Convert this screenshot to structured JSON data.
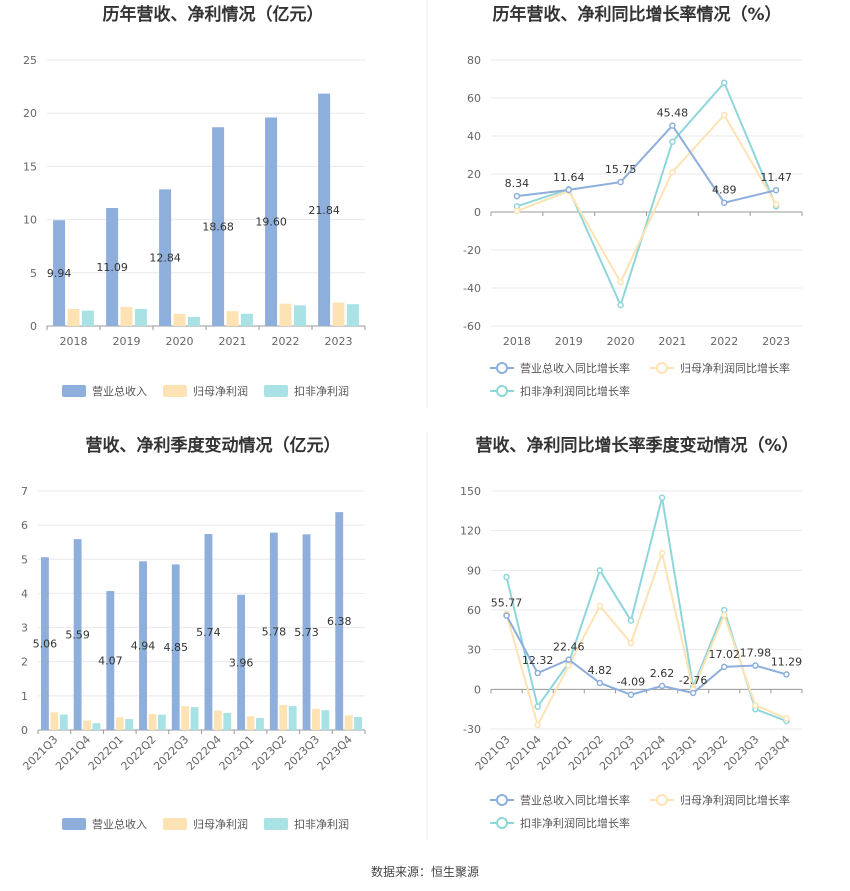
{
  "colors": {
    "revenue": "#8eaedc",
    "net_profit": "#fde3b3",
    "deducted_profit": "#a9e2e4",
    "revenue_line": "#8eaedc",
    "net_profit_line": "#fde3b3",
    "deducted_profit_line": "#8fd6da",
    "grid": "#e8e8ee",
    "axis": "#999999"
  },
  "footer": {
    "source": "数据来源：恒生聚源"
  },
  "chart_data": [
    {
      "type": "bar",
      "title": "历年营收、净利情况（亿元）",
      "categories": [
        "2018",
        "2019",
        "2020",
        "2021",
        "2022",
        "2023"
      ],
      "ylim": [
        0,
        25
      ],
      "yticks": [
        0,
        5,
        10,
        15,
        20,
        25
      ],
      "series": [
        {
          "name": "营业总收入",
          "values": [
            9.94,
            11.09,
            12.84,
            18.68,
            19.6,
            21.84
          ],
          "labels": [
            "9.94",
            "11.09",
            "12.84",
            "18.68",
            "19.60",
            "21.84"
          ]
        },
        {
          "name": "归母净利润",
          "values": [
            1.6,
            1.8,
            1.15,
            1.4,
            2.1,
            2.2
          ]
        },
        {
          "name": "扣非净利润",
          "values": [
            1.45,
            1.6,
            0.85,
            1.15,
            1.95,
            2.05
          ]
        }
      ],
      "legend": "bottom",
      "grid": true
    },
    {
      "type": "line",
      "title": "历年营收、净利同比增长率情况（%）",
      "categories": [
        "2018",
        "2019",
        "2020",
        "2021",
        "2022",
        "2023"
      ],
      "ylim": [
        -60,
        80
      ],
      "yticks": [
        -60,
        -40,
        -20,
        0,
        20,
        40,
        60,
        80
      ],
      "series": [
        {
          "name": "营业总收入同比增长率",
          "values": [
            8.34,
            11.64,
            15.75,
            45.48,
            4.89,
            11.47
          ],
          "labels": [
            "8.34",
            "11.64",
            "15.75",
            "45.48",
            "4.89",
            "11.47"
          ]
        },
        {
          "name": "归母净利润同比增长率",
          "values": [
            0.5,
            11,
            -37,
            21,
            51,
            4
          ]
        },
        {
          "name": "扣非净利润同比增长率",
          "values": [
            3,
            12,
            -49,
            37,
            68,
            3
          ]
        }
      ],
      "legend": "bottom",
      "grid": true
    },
    {
      "type": "bar",
      "title": "营收、净利季度变动情况（亿元）",
      "categories": [
        "2021Q3",
        "2021Q4",
        "2022Q1",
        "2022Q2",
        "2022Q3",
        "2022Q4",
        "2023Q1",
        "2023Q2",
        "2023Q3",
        "2023Q4"
      ],
      "ylim": [
        0,
        7
      ],
      "yticks": [
        0,
        1,
        2,
        3,
        4,
        5,
        6,
        7
      ],
      "series": [
        {
          "name": "营业总收入",
          "values": [
            5.06,
            5.59,
            4.07,
            4.94,
            4.85,
            5.74,
            3.96,
            5.78,
            5.73,
            6.38
          ],
          "labels": [
            "5.06",
            "5.59",
            "4.07",
            "4.94",
            "4.85",
            "5.74",
            "3.96",
            "5.78",
            "5.73",
            "6.38"
          ]
        },
        {
          "name": "归母净利润",
          "values": [
            0.52,
            0.28,
            0.37,
            0.47,
            0.7,
            0.57,
            0.4,
            0.73,
            0.62,
            0.43
          ]
        },
        {
          "name": "扣非净利润",
          "values": [
            0.45,
            0.2,
            0.32,
            0.45,
            0.67,
            0.5,
            0.35,
            0.7,
            0.58,
            0.38
          ]
        }
      ],
      "legend": "bottom",
      "grid": true
    },
    {
      "type": "line",
      "title": "营收、净利同比增长率季度变动情况（%）",
      "categories": [
        "2021Q3",
        "2021Q4",
        "2022Q1",
        "2022Q2",
        "2022Q3",
        "2022Q4",
        "2023Q1",
        "2023Q2",
        "2023Q3",
        "2023Q4"
      ],
      "ylim": [
        -30,
        150
      ],
      "yticks": [
        -30,
        0,
        30,
        60,
        90,
        120,
        150
      ],
      "series": [
        {
          "name": "营业总收入同比增长率",
          "values": [
            55.77,
            12.32,
            22.46,
            4.82,
            -4.09,
            2.62,
            -2.76,
            17.02,
            17.98,
            11.29
          ],
          "labels": [
            "55.77",
            "12.32",
            "22.46",
            "4.82",
            "-4.09",
            "2.62",
            "-2.76",
            "17.02",
            "17.98",
            "11.29"
          ]
        },
        {
          "name": "归母净利润同比增长率",
          "values": [
            57,
            -27,
            18,
            63,
            35,
            103,
            0,
            56,
            -12,
            -22
          ]
        },
        {
          "name": "扣非净利润同比增长率",
          "values": [
            85,
            -13,
            20,
            90,
            52,
            145,
            2,
            60,
            -15,
            -24
          ]
        }
      ],
      "legend": "bottom",
      "grid": true
    }
  ]
}
